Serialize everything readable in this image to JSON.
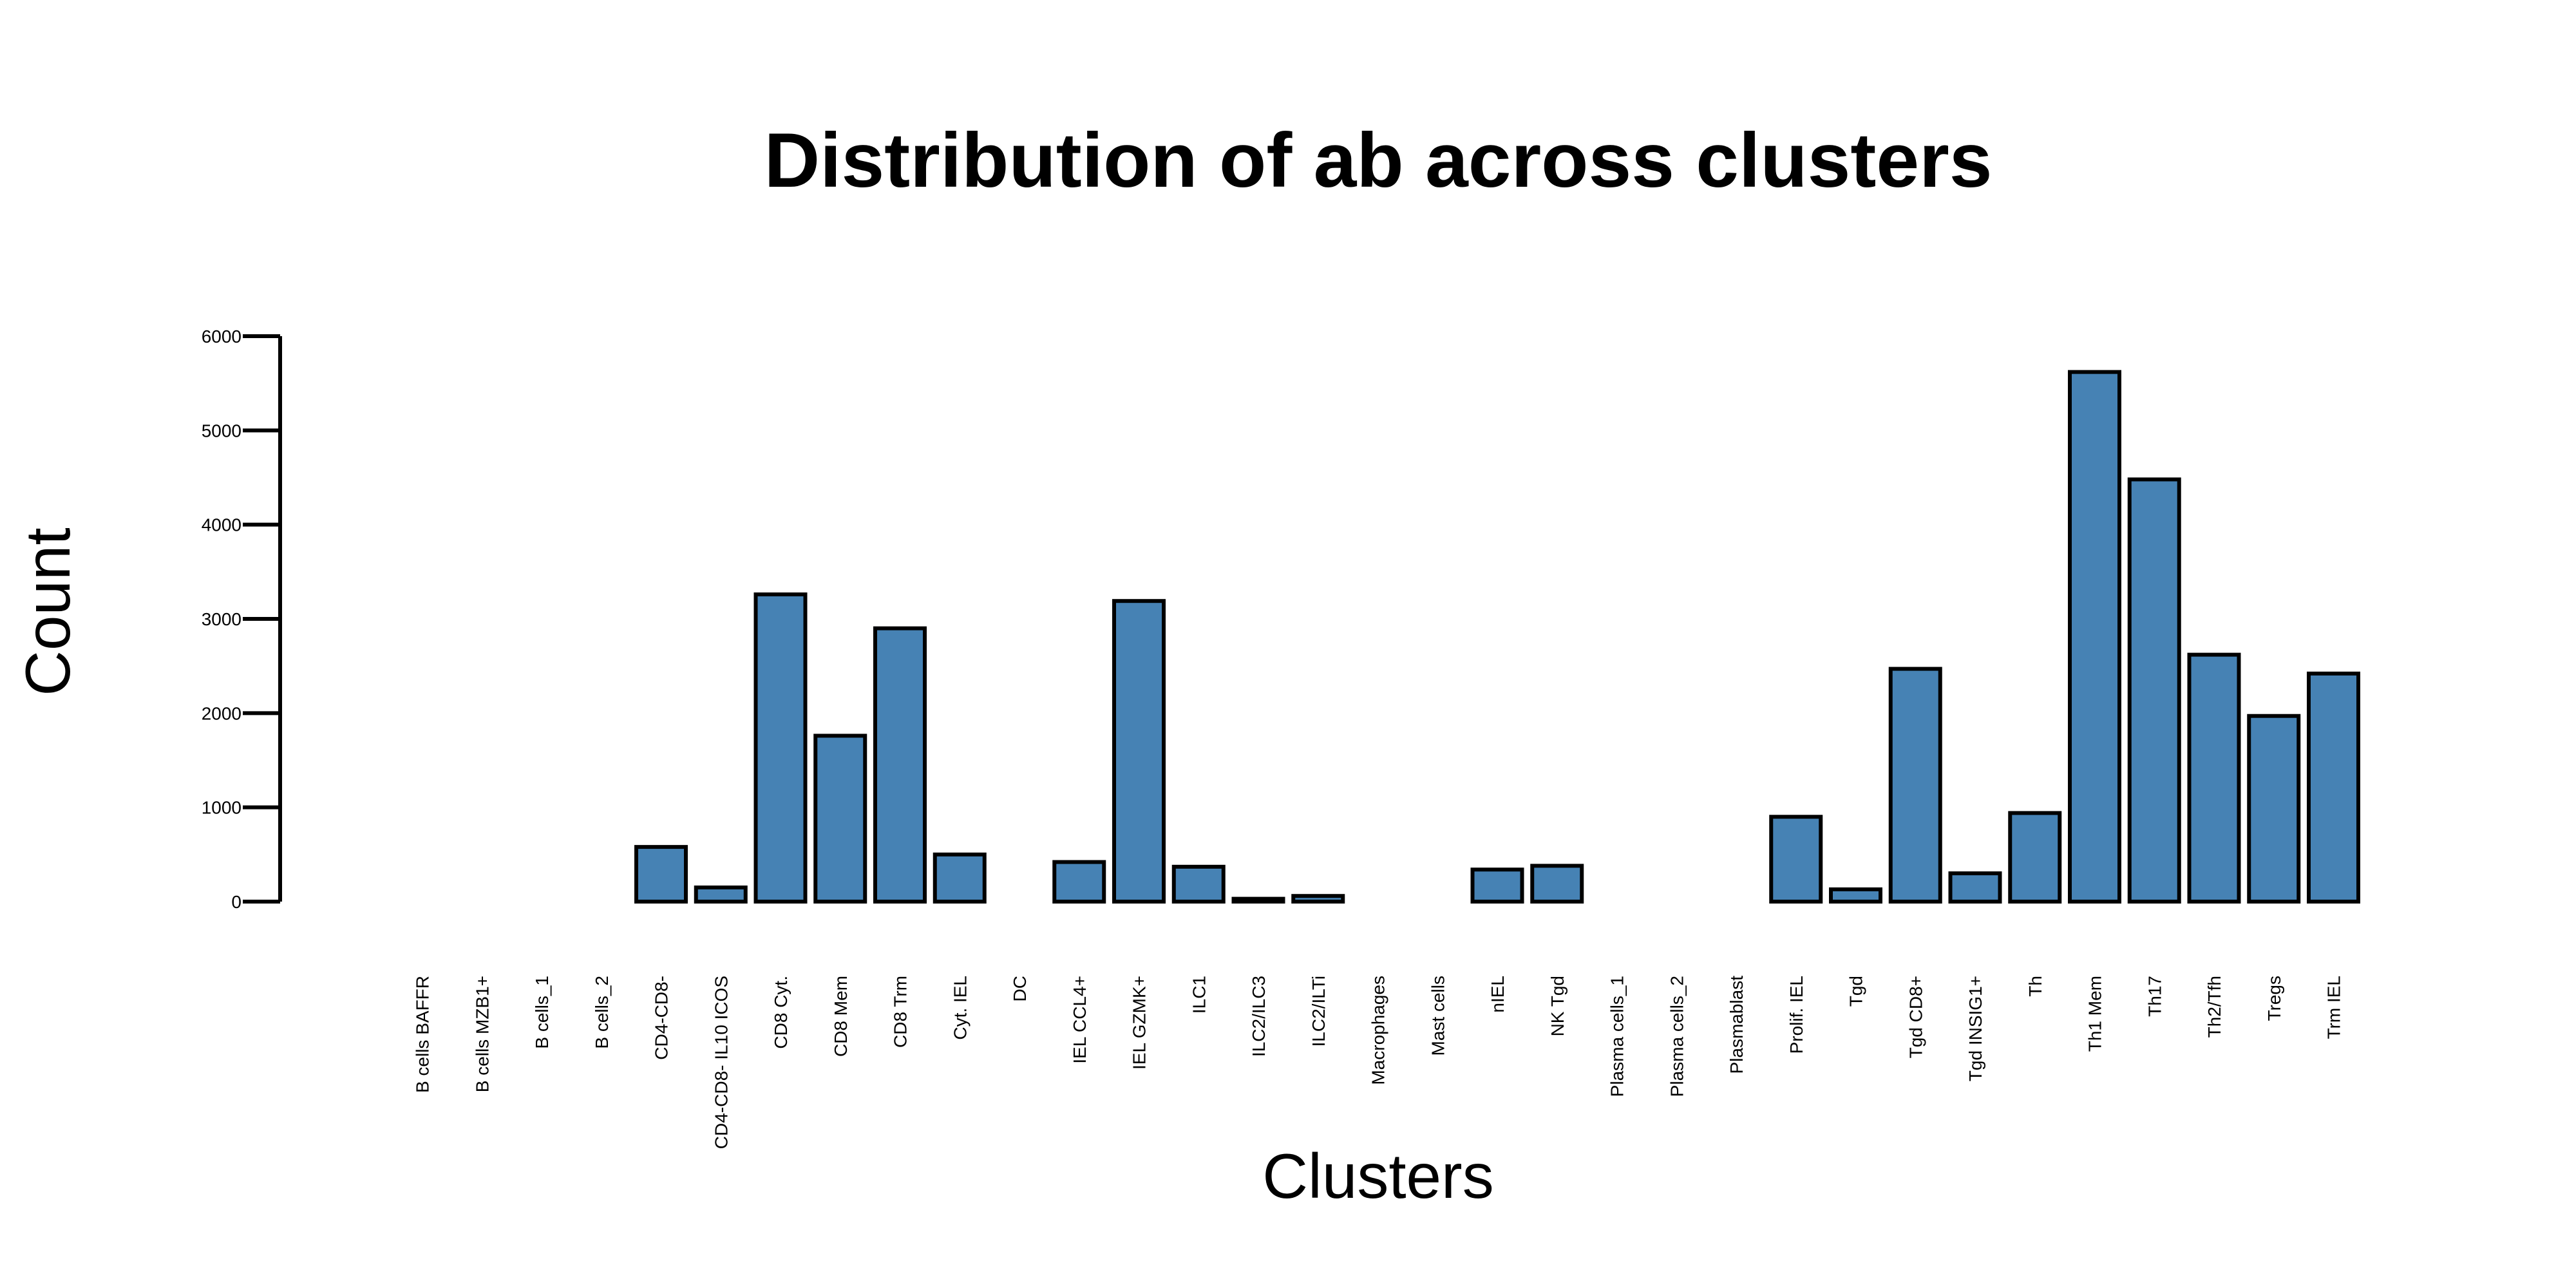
{
  "chart_data": {
    "type": "bar",
    "title": "Distribution of ab across clusters",
    "xlabel": "Clusters",
    "ylabel": "Count",
    "ylim": [
      0,
      6000
    ],
    "yticks": [
      0,
      1000,
      2000,
      3000,
      4000,
      5000,
      6000
    ],
    "bar_color": "#4682B4",
    "grid": false,
    "categories": [
      "B cells BAFFR",
      "B cells MZB1+",
      "B cells_1",
      "B cells_2",
      "CD4-CD8-",
      "CD4-CD8- IL10 ICOS",
      "CD8 Cyt.",
      "CD8 Mem",
      "CD8 Trm",
      "Cyt. IEL",
      "DC",
      "IEL CCL4+",
      "IEL GZMK+",
      "ILC1",
      "ILC2/ILC3",
      "ILC2/ILTi",
      "Macrophages",
      "Mast cells",
      "nIEL",
      "NK Tgd",
      "Plasma cells_1",
      "Plasma cells_2",
      "Plasmablast",
      "Prolif. IEL",
      "Tgd",
      "Tgd CD8+",
      "Tgd INSIG1+",
      "Th",
      "Th1 Mem",
      "Th17",
      "Th2/Tfh",
      "Tregs",
      "Trm IEL"
    ],
    "values": [
      0,
      0,
      0,
      0,
      580,
      150,
      3260,
      1760,
      2900,
      500,
      0,
      420,
      3190,
      370,
      30,
      60,
      0,
      0,
      340,
      380,
      0,
      0,
      0,
      900,
      130,
      2470,
      300,
      940,
      5620,
      4480,
      2620,
      1970,
      2420
    ]
  }
}
